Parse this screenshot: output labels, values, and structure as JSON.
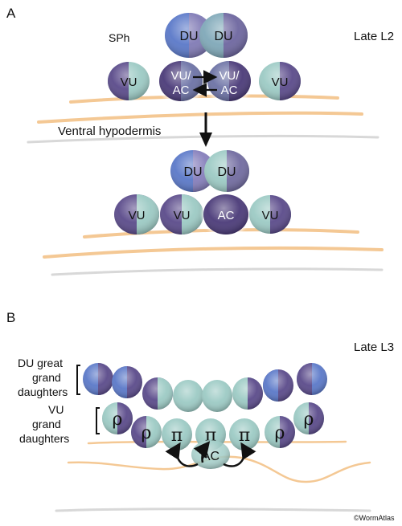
{
  "panel_a": {
    "letter": "A",
    "stage": "Late L2",
    "sph_label": "SPh",
    "hypodermis_label": "Ventral hypodermis",
    "top_du": [
      "DU",
      "DU"
    ],
    "top_row": [
      "VU",
      "VU/\nAC",
      "VU/\nAC",
      "VU"
    ],
    "bottom_du": [
      "DU",
      "DU"
    ],
    "bottom_row": [
      "VU",
      "VU",
      "AC",
      "VU"
    ]
  },
  "panel_b": {
    "letter": "B",
    "stage": "Late L3",
    "du_label": [
      "DU great",
      "grand",
      "daughters"
    ],
    "vu_label": [
      "VU",
      "grand",
      "daughters"
    ],
    "rho": "ρ",
    "pi": "π",
    "ac": "AC"
  },
  "credit": "©WormAtlas",
  "colors": {
    "blue": "#5a78c8",
    "purple": "#5a4a8a",
    "teal": "#9ccac4",
    "ac_purple": "#4a3a78",
    "tissue": "#f4c894",
    "grey_line": "#d8d8d8"
  }
}
